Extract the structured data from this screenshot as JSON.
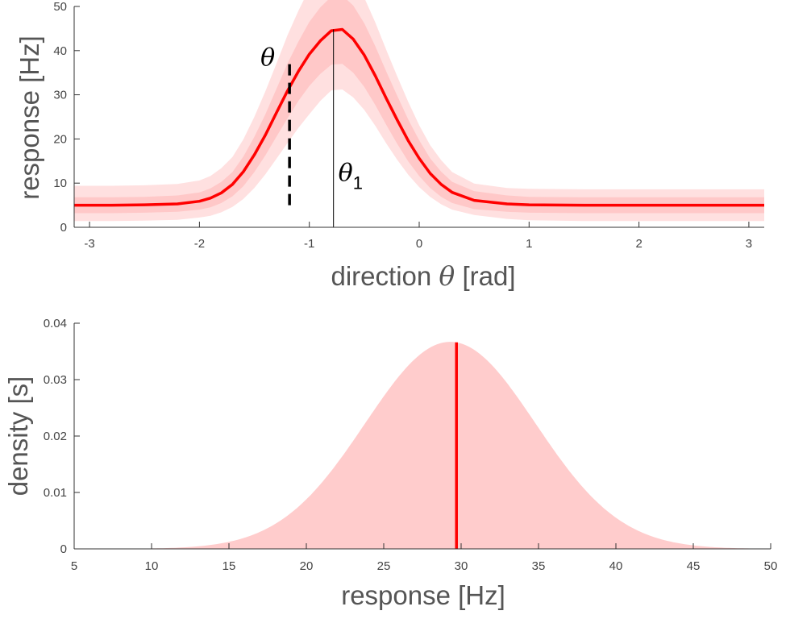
{
  "chart_data": [
    {
      "type": "line",
      "title": "",
      "xlabel_parts": [
        "direction",
        "θ",
        "[rad]"
      ],
      "ylabel": "response [Hz]",
      "xlim": [
        -3.14,
        3.14
      ],
      "ylim": [
        0,
        50
      ],
      "x_ticks": [
        -3,
        -2,
        -1,
        0,
        1,
        2,
        3
      ],
      "y_ticks": [
        0,
        10,
        20,
        30,
        40,
        50
      ],
      "grid": false,
      "legend": "none",
      "colors": {
        "mean": "#ff0000",
        "band_outer": "#ffe0e0",
        "band_inner": "#ffc8c8",
        "marker": "#000000"
      },
      "series": [
        {
          "x": [
            -3.14,
            -2.8,
            -2.5,
            -2.2,
            -2.0,
            -1.9,
            -1.8,
            -1.7,
            -1.6,
            -1.5,
            -1.4,
            -1.3,
            -1.2,
            -1.1,
            -1.0,
            -0.9,
            -0.8,
            -0.7,
            -0.6,
            -0.5,
            -0.4,
            -0.3,
            -0.2,
            -0.1,
            0.0,
            0.1,
            0.2,
            0.3,
            0.5,
            0.8,
            1.0,
            1.5,
            2.0,
            3.14
          ],
          "mean": [
            5.0,
            5.0,
            5.1,
            5.3,
            5.9,
            6.6,
            7.8,
            9.7,
            12.6,
            16.4,
            20.9,
            25.9,
            30.8,
            35.3,
            39.2,
            42.2,
            44.5,
            44.8,
            42.6,
            39.0,
            34.3,
            29.2,
            24.3,
            19.6,
            15.6,
            12.2,
            9.7,
            7.9,
            6.1,
            5.3,
            5.1,
            5.0,
            5.0,
            5.0
          ],
          "inner_lower": [
            3.2,
            3.2,
            3.3,
            3.5,
            4.0,
            4.5,
            5.5,
            7.0,
            9.3,
            12.5,
            16.3,
            20.5,
            24.6,
            28.6,
            32.0,
            34.7,
            36.8,
            37.0,
            35.0,
            31.8,
            27.7,
            23.2,
            18.9,
            14.9,
            11.6,
            8.9,
            6.9,
            5.5,
            4.1,
            3.5,
            3.3,
            3.2,
            3.2,
            3.2
          ],
          "inner_upper": [
            6.8,
            6.8,
            6.9,
            7.2,
            7.9,
            8.8,
            10.3,
            12.5,
            16.0,
            20.5,
            25.6,
            31.3,
            37.0,
            42.0,
            46.5,
            49.8,
            52.2,
            52.5,
            50.2,
            46.2,
            41.0,
            35.3,
            29.8,
            24.4,
            19.7,
            15.6,
            12.6,
            10.3,
            8.2,
            7.2,
            6.9,
            6.8,
            6.8,
            6.8
          ],
          "outer_lower": [
            1.4,
            1.4,
            1.5,
            1.7,
            2.2,
            2.6,
            3.4,
            4.6,
            6.4,
            8.9,
            12.0,
            15.5,
            19.0,
            22.5,
            25.6,
            28.6,
            31.0,
            31.2,
            29.4,
            26.6,
            23.0,
            19.0,
            15.3,
            11.9,
            9.1,
            6.9,
            5.2,
            4.0,
            2.8,
            1.9,
            1.6,
            1.4,
            1.4,
            1.4
          ],
          "outer_upper": [
            9.4,
            9.4,
            9.5,
            9.8,
            10.6,
            11.6,
            13.4,
            15.9,
            19.9,
            25.0,
            30.8,
            37.0,
            43.4,
            49.0,
            54.0,
            57.0,
            58.0,
            58.0,
            56.5,
            52.0,
            46.4,
            40.2,
            34.2,
            28.4,
            23.1,
            18.6,
            15.2,
            12.5,
            9.9,
            8.9,
            8.7,
            8.6,
            8.6,
            8.6
          ]
        }
      ],
      "annotations": {
        "theta_label": "θ",
        "theta_x": -1.18,
        "theta_line_y": [
          5,
          37.5
        ],
        "theta1_label": "θ",
        "theta1_subscript": "1",
        "theta1_x": -0.78,
        "theta1_line_y": [
          0,
          44.8
        ]
      }
    },
    {
      "type": "area",
      "title": "",
      "xlabel": "response [Hz]",
      "ylabel": "density [s]",
      "xlim": [
        5,
        50
      ],
      "ylim": [
        0,
        0.04
      ],
      "x_ticks": [
        5,
        10,
        15,
        20,
        25,
        30,
        35,
        40,
        45,
        50
      ],
      "y_ticks": [
        0,
        0.01,
        0.02,
        0.03,
        0.04
      ],
      "y_tick_labels": [
        "0",
        "0.01",
        "0.02",
        "0.03",
        "0.04"
      ],
      "grid": false,
      "legend": "none",
      "colors": {
        "fill": "#ffcccc",
        "marker": "#ff0000"
      },
      "distribution": {
        "shape": "normal",
        "mean": 29.3,
        "sd": 5.5,
        "peak_density": 0.0367
      },
      "marker_x": 29.7
    }
  ]
}
